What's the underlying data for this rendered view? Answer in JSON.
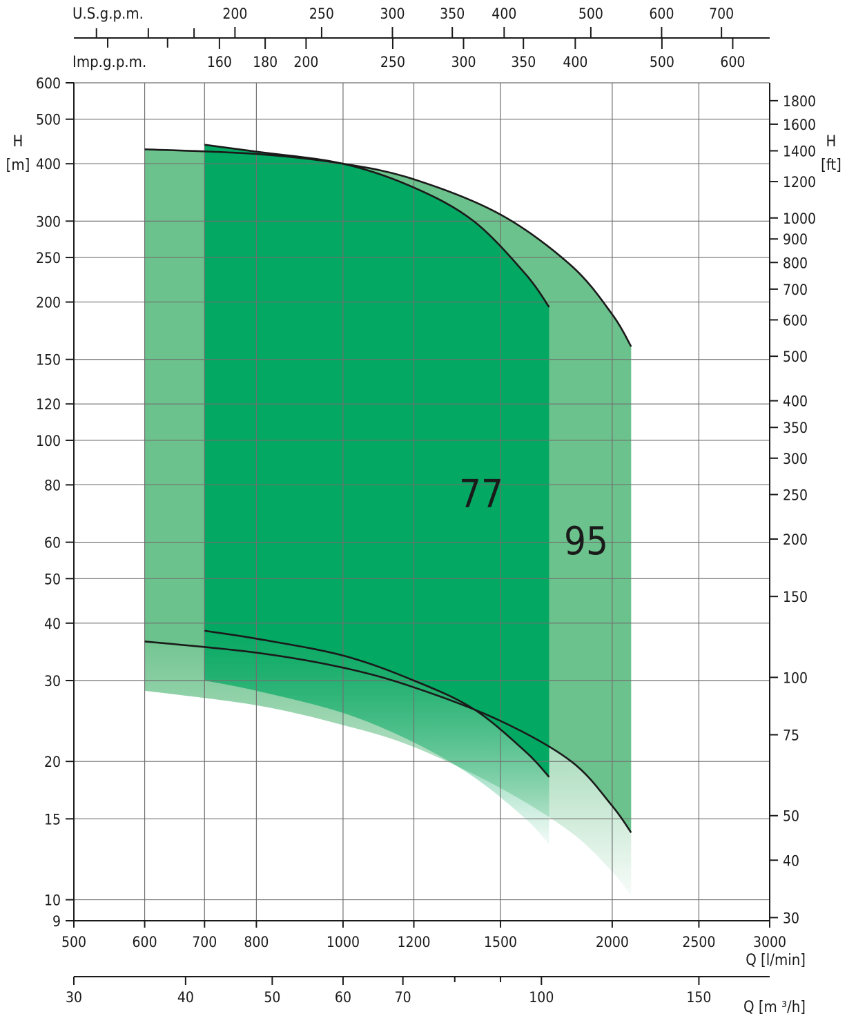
{
  "colors": {
    "zone_light": "#6cc28c",
    "zone_dark": "#03a862",
    "fade_light": "#6cc28c",
    "fade_dark": "#03a862",
    "curve": "#1a1a1a"
  },
  "chart_data": {
    "type": "area",
    "title": "",
    "scale": "log-log",
    "grid": true,
    "axes": {
      "x_bottom": {
        "label": "Q [l/min]",
        "range": [
          500,
          3000
        ],
        "ticks": [
          "500",
          "600",
          "700",
          "800",
          "1000",
          "1200",
          "1500",
          "2000",
          "2500",
          "3000"
        ]
      },
      "x_m3h": {
        "label": "Q [m ³/h]",
        "ticks": [
          "30",
          "40",
          "50",
          "60",
          "70",
          "100",
          "150"
        ],
        "minor_ticks": [
          80,
          90
        ]
      },
      "x_usgpm": {
        "label": "U.S.g.p.m.",
        "ticks": [
          "200",
          "250",
          "300",
          "350",
          "400",
          "500",
          "600",
          "700"
        ],
        "minor_ticks": [
          140,
          160,
          180
        ]
      },
      "x_impgpm": {
        "label": "Imp.g.p.m.",
        "ticks": [
          "160",
          "180",
          "200",
          "250",
          "300",
          "350",
          "400",
          "500",
          "600"
        ],
        "minor_ticks": [
          120,
          140
        ]
      },
      "y_left": {
        "label_line1": "H",
        "label_line2": "[m]",
        "range": [
          9,
          600
        ],
        "ticks": [
          "9",
          "10",
          "15",
          "20",
          "30",
          "40",
          "50",
          "60",
          "80",
          "100",
          "120",
          "150",
          "200",
          "250",
          "300",
          "400",
          "500",
          "600"
        ]
      },
      "y_right": {
        "label_line1": "H",
        "label_line2": "[ft]",
        "ticks": [
          "30",
          "40",
          "50",
          "75",
          "100",
          "150",
          "200",
          "250",
          "300",
          "350",
          "400",
          "500",
          "600",
          "700",
          "800",
          "900",
          "1000",
          "1200",
          "1400",
          "1600",
          "1800"
        ]
      }
    },
    "series": [
      {
        "name": "95",
        "q_range_l_min": [
          600,
          2100
        ],
        "upper_curve": {
          "x": [
            600,
            800,
            1000,
            1200,
            1500,
            1800,
            2000,
            2100
          ],
          "y": [
            430,
            420,
            400,
            370,
            310,
            240,
            188,
            160
          ]
        },
        "lower_curve": {
          "x": [
            600,
            800,
            1000,
            1200,
            1500,
            1800,
            2000,
            2100
          ],
          "y": [
            36.5,
            34.5,
            32.0,
            29.0,
            24.5,
            20.0,
            16.0,
            14.0
          ]
        },
        "fade_bottom": {
          "x": [
            600,
            800,
            1000,
            1200,
            1500,
            1800,
            2000,
            2100
          ],
          "y": [
            28.5,
            26.5,
            24.0,
            21.5,
            17.5,
            14.0,
            11.5,
            10.2
          ]
        }
      },
      {
        "name": "77",
        "q_range_l_min": [
          700,
          1700
        ],
        "upper_curve": {
          "x": [
            700,
            800,
            1000,
            1200,
            1400,
            1600,
            1700
          ],
          "y": [
            440,
            425,
            400,
            355,
            300,
            230,
            195
          ]
        },
        "lower_curve": {
          "x": [
            700,
            800,
            1000,
            1200,
            1400,
            1600,
            1700
          ],
          "y": [
            38.5,
            37.0,
            34.0,
            30.0,
            26.0,
            21.0,
            18.5
          ]
        },
        "fade_bottom": {
          "x": [
            700,
            800,
            1000,
            1200,
            1400,
            1600,
            1700
          ],
          "y": [
            30.0,
            28.5,
            25.5,
            22.0,
            18.5,
            15.0,
            13.2
          ]
        }
      }
    ]
  }
}
